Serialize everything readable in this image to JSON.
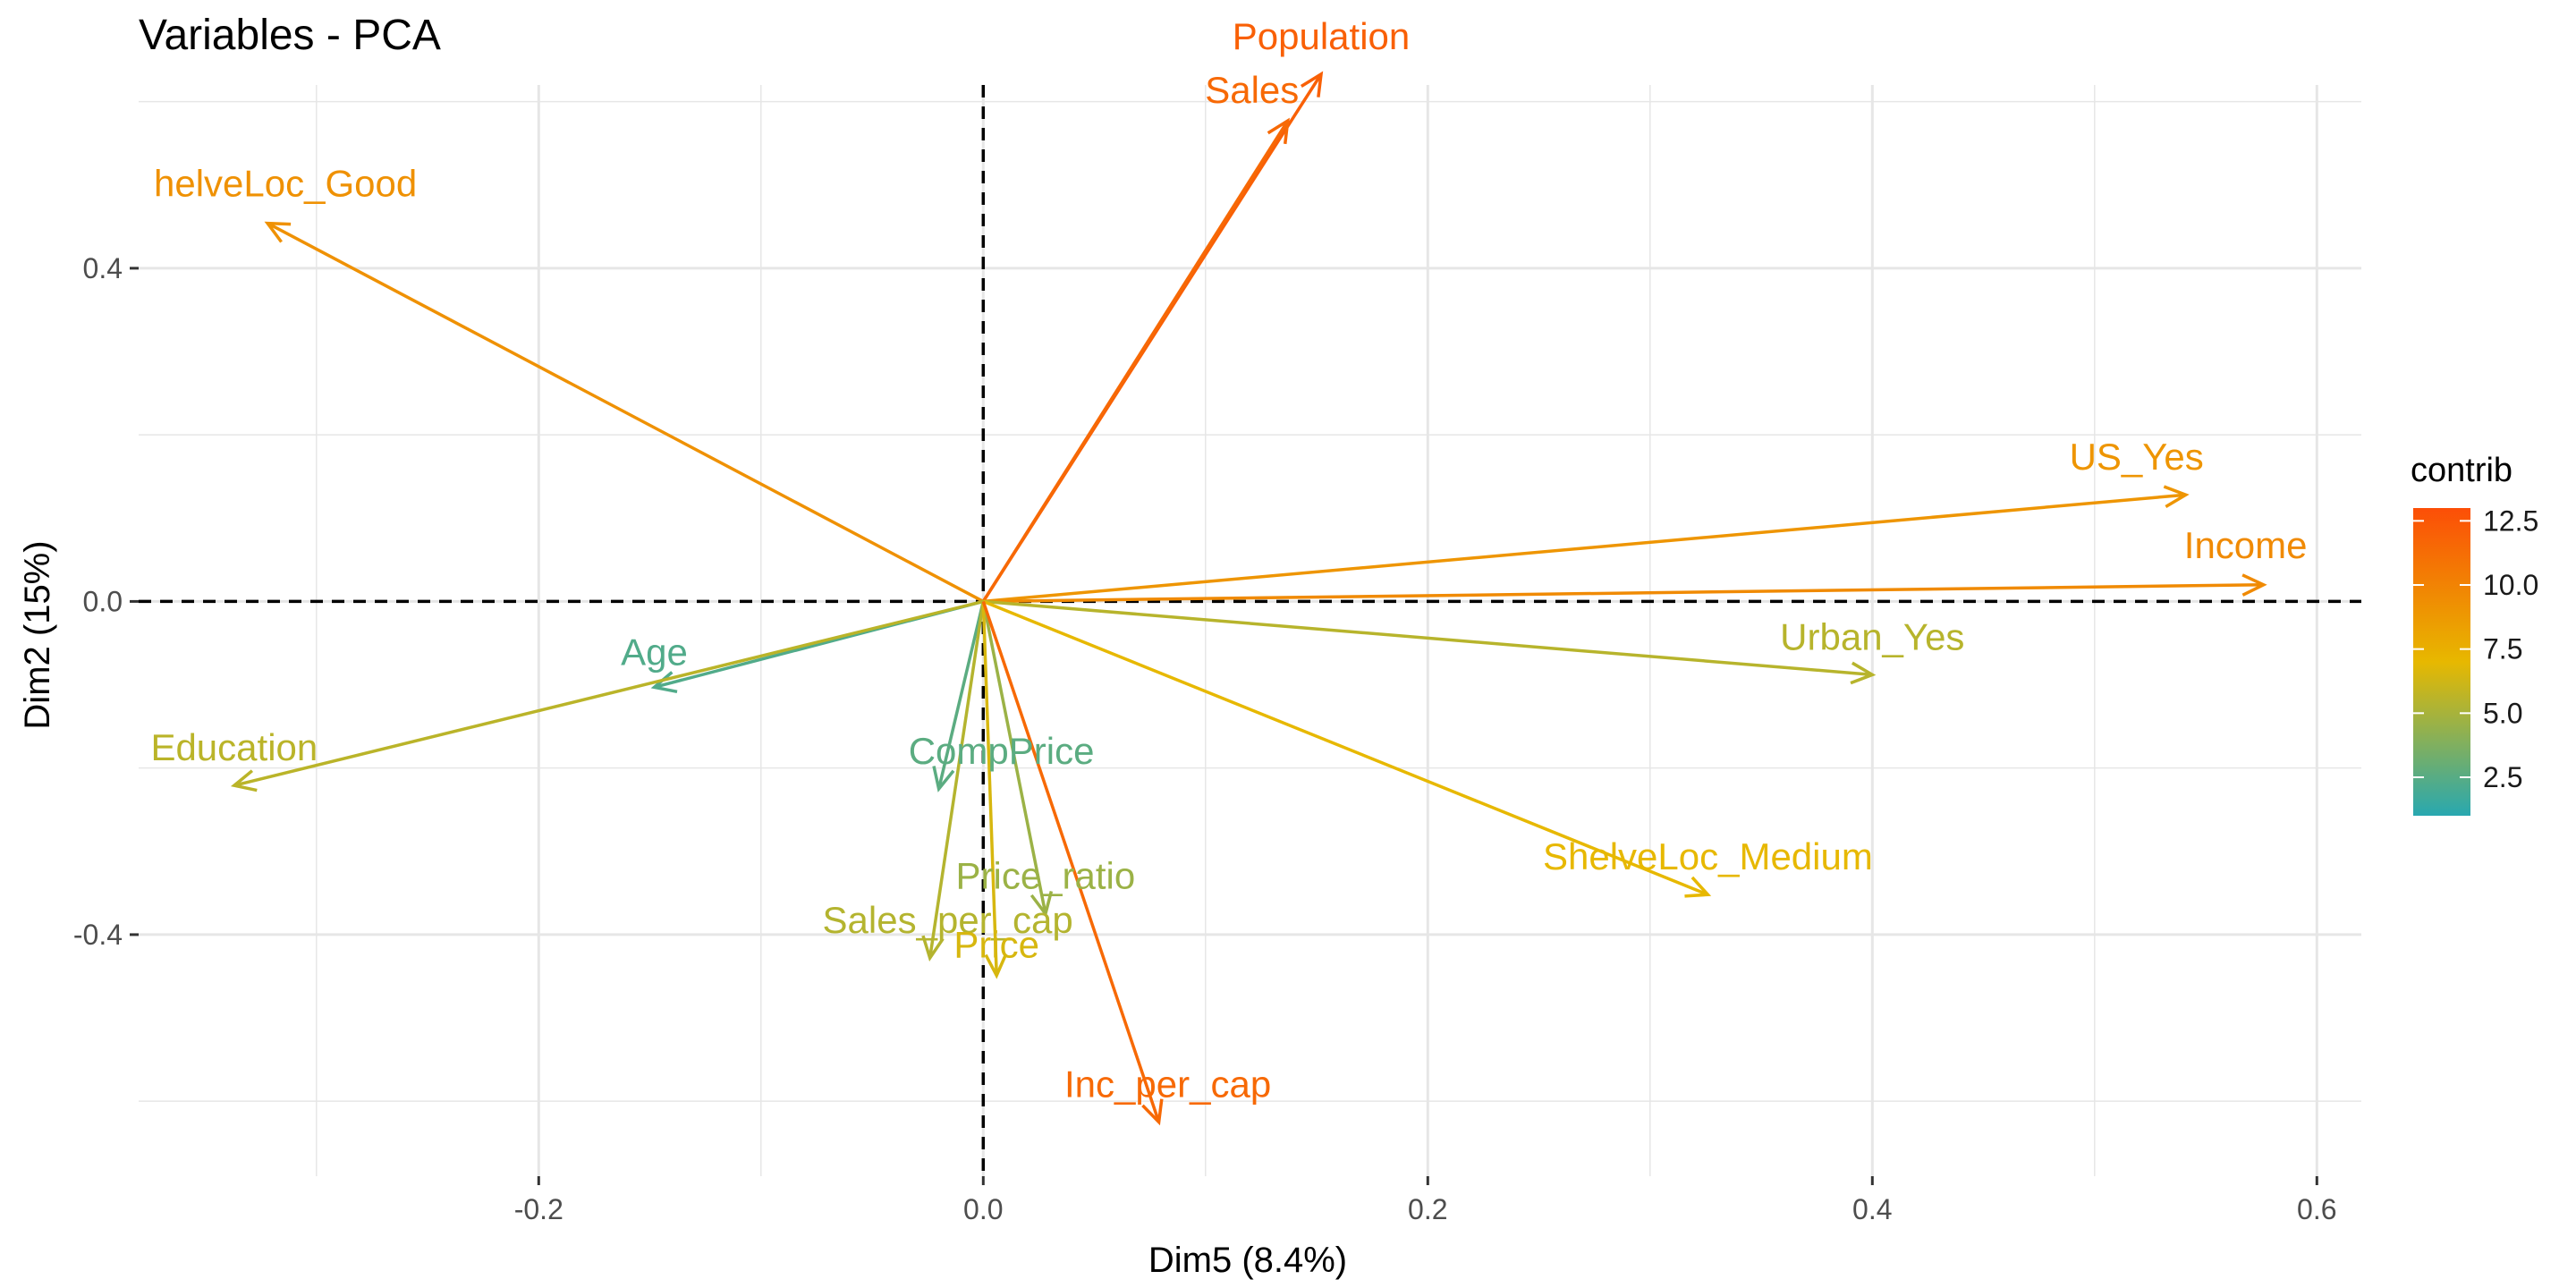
{
  "chart_data": {
    "type": "scatter",
    "title": "Variables - PCA",
    "xlabel": "Dim5 (8.4%)",
    "ylabel": "Dim2 (15%)",
    "xlim": [
      -0.38,
      0.62
    ],
    "ylim": [
      -0.69,
      0.62
    ],
    "x_ticks": [
      -0.2,
      0.0,
      0.2,
      0.4,
      0.6
    ],
    "x_tick_labels": [
      "-0.2",
      "0.0",
      "0.2",
      "0.4",
      "0.6"
    ],
    "y_ticks": [
      -0.4,
      0.0,
      0.4
    ],
    "y_tick_labels": [
      "-0.4",
      "0.0",
      "0.4"
    ],
    "grid": true,
    "reference_lines": {
      "x": 0,
      "y": 0,
      "style": "dashed"
    },
    "arrows": [
      {
        "label": "Population",
        "x": 0.152,
        "y": 0.633,
        "contrib": 12.0
      },
      {
        "label": "Sales",
        "x": 0.137,
        "y": 0.577,
        "contrib": 11.5
      },
      {
        "label": "helveLoc_Good",
        "x": -0.322,
        "y": 0.454,
        "contrib": 9.2
      },
      {
        "label": "US_Yes",
        "x": 0.541,
        "y": 0.128,
        "contrib": 9.0
      },
      {
        "label": "Income",
        "x": 0.576,
        "y": 0.02,
        "contrib": 9.6
      },
      {
        "label": "Urban_Yes",
        "x": 0.4,
        "y": -0.088,
        "contrib": 5.5
      },
      {
        "label": "Age",
        "x": -0.148,
        "y": -0.103,
        "contrib": 2.3
      },
      {
        "label": "Education",
        "x": -0.337,
        "y": -0.221,
        "contrib": 5.6
      },
      {
        "label": "CompPrice",
        "x": -0.02,
        "y": -0.225,
        "contrib": 2.6
      },
      {
        "label": "ShelveLoc_Medium",
        "x": 0.326,
        "y": -0.352,
        "contrib": 7.0
      },
      {
        "label": "Price_ratio",
        "x": 0.028,
        "y": -0.375,
        "contrib": 4.6
      },
      {
        "label": "Sales_per_cap",
        "x": -0.024,
        "y": -0.428,
        "contrib": 5.4
      },
      {
        "label": "Price",
        "x": 0.006,
        "y": -0.449,
        "contrib": 6.5
      },
      {
        "label": "Inc_per_cap",
        "x": 0.079,
        "y": -0.625,
        "contrib": 11.5
      }
    ],
    "legend": {
      "title": "contrib",
      "position": "right",
      "min": 1.0,
      "max": 13.0,
      "ticks": [
        2.5,
        5.0,
        7.5,
        10.0,
        12.5
      ],
      "tick_labels": [
        "2.5",
        "5.0",
        "7.5",
        "10.0",
        "12.5"
      ],
      "gradient_colors": [
        "#28A8B0",
        "#E7B800",
        "#FC4E07"
      ]
    }
  }
}
